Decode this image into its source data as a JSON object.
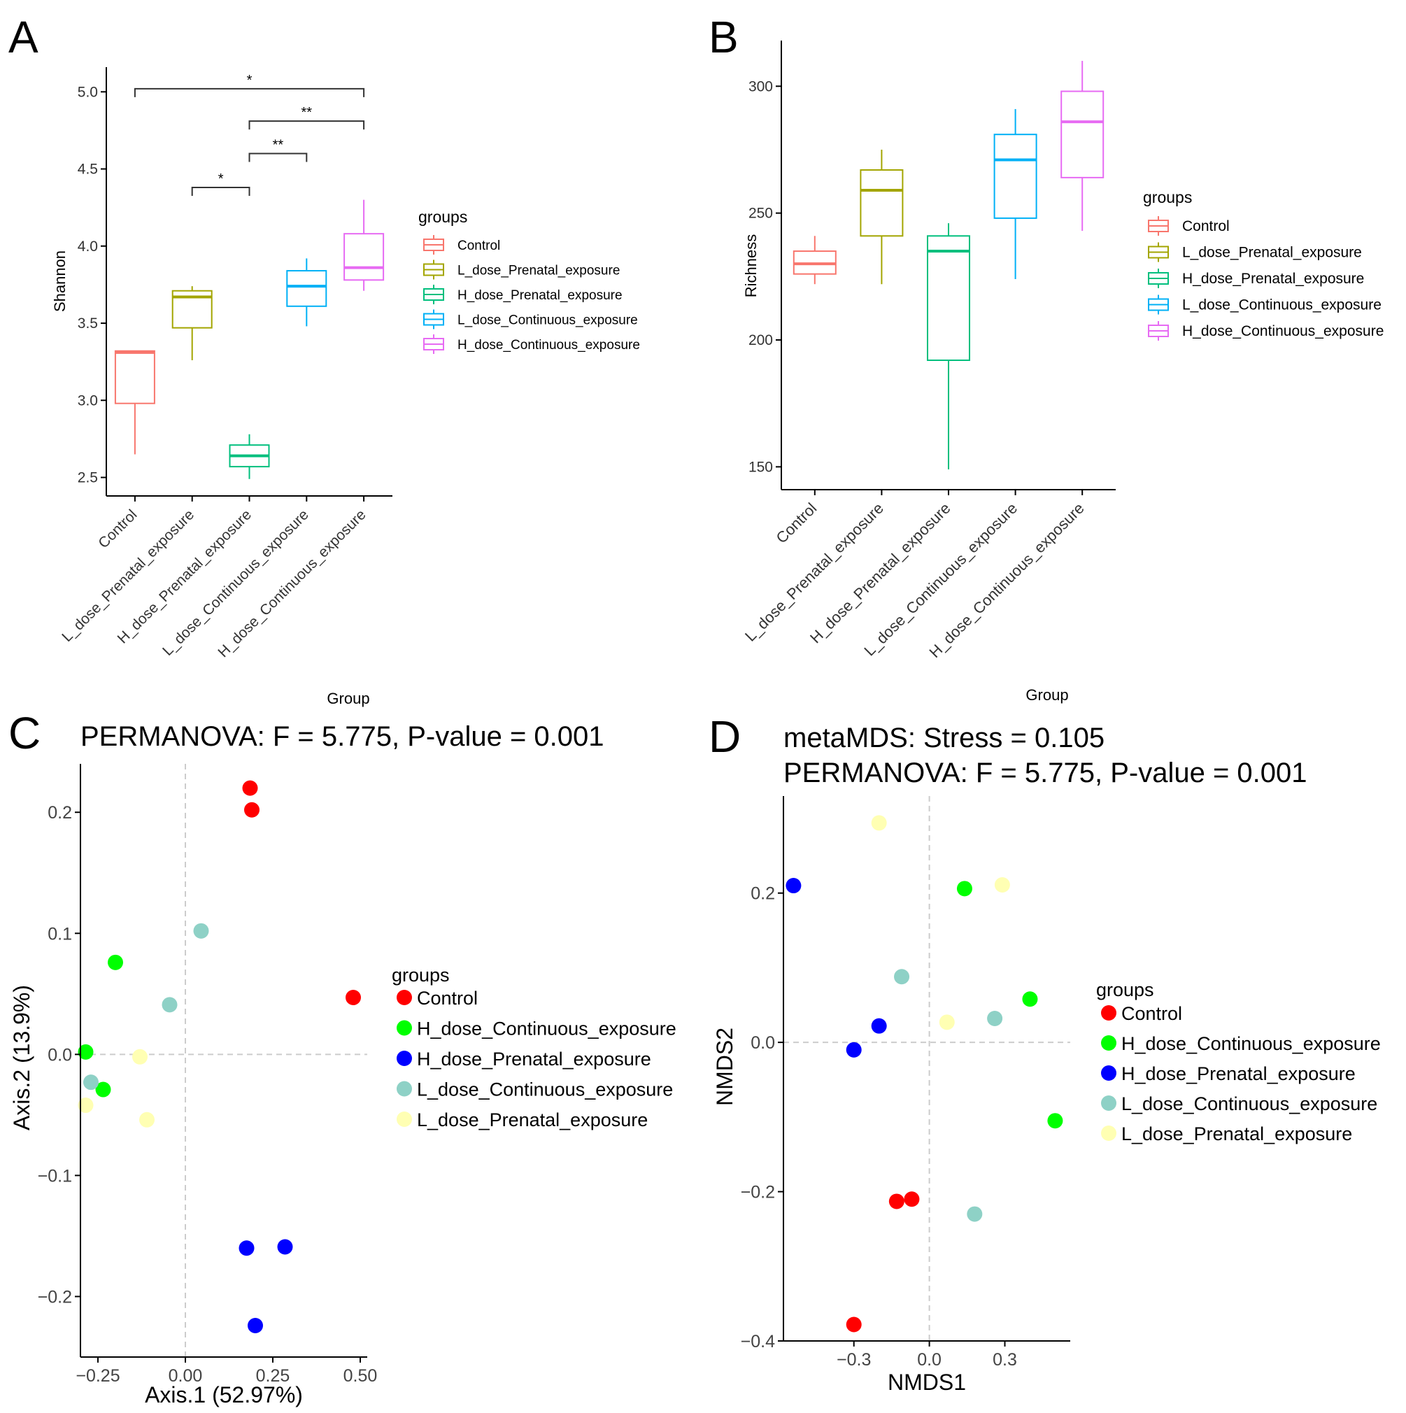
{
  "colors": {
    "control": "#F8766D",
    "l_prenatal": "#A3A500",
    "h_prenatal": "#00BF7D",
    "l_continuous": "#00B0F6",
    "h_continuous": "#E76BF3",
    "pt_control": "#FF0000",
    "pt_h_continuous": "#00FF00",
    "pt_h_prenatal": "#0000FF",
    "pt_l_continuous": "#8ED1C6",
    "pt_l_prenatal": "#FFFFB3"
  },
  "chart_data": [
    {
      "panel": "A",
      "type": "box",
      "xlabel": "Group",
      "ylabel": "Shannon",
      "ylim": [
        2.38,
        5.16
      ],
      "yticks": [
        "5.0",
        "4.5",
        "4.0",
        "3.5",
        "3.0",
        "2.5"
      ],
      "ytick_values": [
        5.0,
        4.5,
        4.0,
        3.5,
        3.0,
        2.5
      ],
      "categories": [
        "Control",
        "L_dose_Prenatal_exposure",
        "H_dose_Prenatal_exposure",
        "L_dose_Continuous_exposure",
        "H_dose_Continuous_exposure"
      ],
      "boxes": [
        {
          "min": 2.65,
          "q1": 2.98,
          "median": 3.31,
          "q3": 3.32,
          "max": 3.32
        },
        {
          "min": 3.26,
          "q1": 3.47,
          "median": 3.67,
          "q3": 3.71,
          "max": 3.74
        },
        {
          "min": 2.49,
          "q1": 2.57,
          "median": 2.64,
          "q3": 2.71,
          "max": 2.78
        },
        {
          "min": 3.48,
          "q1": 3.61,
          "median": 3.74,
          "q3": 3.84,
          "max": 3.92
        },
        {
          "min": 3.71,
          "q1": 3.78,
          "median": 3.86,
          "q3": 4.08,
          "max": 4.3
        }
      ],
      "significance": [
        {
          "from": 0,
          "to": 4,
          "y": 5.02,
          "label": "*"
        },
        {
          "from": 2,
          "to": 4,
          "y": 4.81,
          "label": "**"
        },
        {
          "from": 2,
          "to": 3,
          "y": 4.6,
          "label": "**"
        },
        {
          "from": 1,
          "to": 2,
          "y": 4.38,
          "label": "*"
        }
      ],
      "legend_title": "groups",
      "legend": [
        "Control",
        "L_dose_Prenatal_exposure",
        "H_dose_Prenatal_exposure",
        "L_dose_Continuous_exposure",
        "H_dose_Continuous_exposure"
      ]
    },
    {
      "panel": "B",
      "type": "box",
      "xlabel": "Group",
      "ylabel": "Richness",
      "ylim": [
        141,
        318
      ],
      "yticks": [
        "300",
        "250",
        "200",
        "150"
      ],
      "ytick_values": [
        300,
        250,
        200,
        150
      ],
      "categories": [
        "Control",
        "L_dose_Prenatal_exposure",
        "H_dose_Prenatal_exposure",
        "L_dose_Continuous_exposure",
        "H_dose_Continuous_exposure"
      ],
      "boxes": [
        {
          "min": 222,
          "q1": 226,
          "median": 230,
          "q3": 235,
          "max": 241
        },
        {
          "min": 222,
          "q1": 241,
          "median": 259,
          "q3": 267,
          "max": 275
        },
        {
          "min": 149,
          "q1": 192,
          "median": 235,
          "q3": 241,
          "max": 246
        },
        {
          "min": 224,
          "q1": 248,
          "median": 271,
          "q3": 281,
          "max": 291
        },
        {
          "min": 243,
          "q1": 264,
          "median": 286,
          "q3": 298,
          "max": 310
        }
      ],
      "legend_title": "groups",
      "legend": [
        "Control",
        "L_dose_Prenatal_exposure",
        "H_dose_Prenatal_exposure",
        "L_dose_Continuous_exposure",
        "H_dose_Continuous_exposure"
      ]
    },
    {
      "panel": "C",
      "type": "scatter",
      "title": "PERMANOVA: F = 5.775, P-value = 0.001",
      "xlabel": "Axis.1 (52.97%)",
      "ylabel": "Axis.2 (13.9%)",
      "xlim": [
        -0.3,
        0.52
      ],
      "ylim": [
        -0.25,
        0.24
      ],
      "xticks": [
        "−0.25",
        "0.00",
        "0.25",
        "0.50"
      ],
      "xtick_values": [
        -0.25,
        0.0,
        0.25,
        0.5
      ],
      "yticks": [
        "0.2",
        "0.1",
        "0.0",
        "−0.1",
        "−0.2"
      ],
      "ytick_values": [
        0.2,
        0.1,
        0.0,
        -0.1,
        -0.2
      ],
      "series": [
        {
          "name": "Control",
          "color_key": "pt_control",
          "points": [
            [
              0.185,
              0.22
            ],
            [
              0.19,
              0.202
            ],
            [
              0.48,
              0.047
            ]
          ]
        },
        {
          "name": "H_dose_Continuous_exposure",
          "color_key": "pt_h_continuous",
          "points": [
            [
              -0.2,
              0.076
            ],
            [
              -0.285,
              0.002
            ],
            [
              -0.235,
              -0.029
            ]
          ]
        },
        {
          "name": "H_dose_Prenatal_exposure",
          "color_key": "pt_h_prenatal",
          "points": [
            [
              0.175,
              -0.16
            ],
            [
              0.285,
              -0.159
            ],
            [
              0.2,
              -0.224
            ]
          ]
        },
        {
          "name": "L_dose_Continuous_exposure",
          "color_key": "pt_l_continuous",
          "points": [
            [
              0.045,
              0.102
            ],
            [
              -0.045,
              0.041
            ],
            [
              -0.27,
              -0.023
            ]
          ]
        },
        {
          "name": "L_dose_Prenatal_exposure",
          "color_key": "pt_l_prenatal",
          "points": [
            [
              -0.13,
              -0.002
            ],
            [
              -0.285,
              -0.042
            ],
            [
              -0.11,
              -0.054
            ]
          ]
        }
      ],
      "legend_title": "groups",
      "legend": [
        "Control",
        "H_dose_Continuous_exposure",
        "H_dose_Prenatal_exposure",
        "L_dose_Continuous_exposure",
        "L_dose_Prenatal_exposure"
      ]
    },
    {
      "panel": "D",
      "type": "scatter",
      "title_line1": "metaMDS: Stress = 0.105",
      "title_line2": "PERMANOVA: F = 5.775, P-value = 0.001",
      "xlabel": "NMDS1",
      "ylabel": "NMDS2",
      "xlim": [
        -0.58,
        0.56
      ],
      "ylim": [
        -0.4,
        0.33
      ],
      "xticks": [
        "−0.3",
        "0.0",
        "0.3"
      ],
      "xtick_values": [
        -0.3,
        0.0,
        0.3
      ],
      "yticks": [
        "0.2",
        "0.0",
        "−0.2",
        "−0.4"
      ],
      "ytick_values": [
        0.2,
        0.0,
        -0.2,
        -0.4
      ],
      "series": [
        {
          "name": "Control",
          "color_key": "pt_control",
          "points": [
            [
              -0.13,
              -0.213
            ],
            [
              -0.07,
              -0.21
            ],
            [
              -0.3,
              -0.378
            ]
          ]
        },
        {
          "name": "H_dose_Continuous_exposure",
          "color_key": "pt_h_continuous",
          "points": [
            [
              0.14,
              0.206
            ],
            [
              0.4,
              0.058
            ],
            [
              0.5,
              -0.105
            ]
          ]
        },
        {
          "name": "H_dose_Prenatal_exposure",
          "color_key": "pt_h_prenatal",
          "points": [
            [
              -0.54,
              0.21
            ],
            [
              -0.2,
              0.022
            ],
            [
              -0.3,
              -0.01
            ]
          ]
        },
        {
          "name": "L_dose_Continuous_exposure",
          "color_key": "pt_l_continuous",
          "points": [
            [
              -0.11,
              0.088
            ],
            [
              0.26,
              0.032
            ],
            [
              0.18,
              -0.23
            ]
          ]
        },
        {
          "name": "L_dose_Prenatal_exposure",
          "color_key": "pt_l_prenatal",
          "points": [
            [
              -0.2,
              0.294
            ],
            [
              0.29,
              0.211
            ],
            [
              0.07,
              0.027
            ]
          ]
        }
      ],
      "legend_title": "groups",
      "legend": [
        "Control",
        "H_dose_Continuous_exposure",
        "H_dose_Prenatal_exposure",
        "L_dose_Continuous_exposure",
        "L_dose_Prenatal_exposure"
      ]
    }
  ],
  "panel_labels": [
    "A",
    "B",
    "C",
    "D"
  ]
}
